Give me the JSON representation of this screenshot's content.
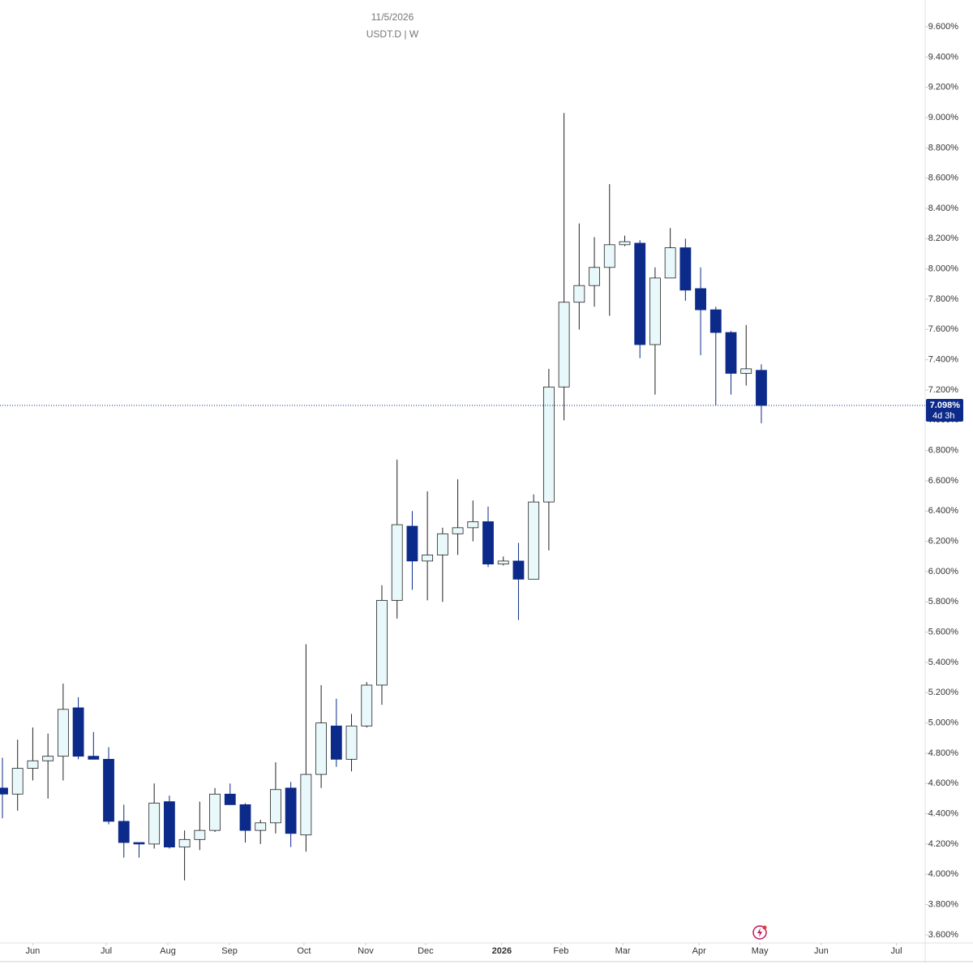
{
  "chart_data": {
    "type": "candlestick",
    "title": "11/5/2026",
    "subtitle": "USDT.D | W",
    "x": [
      0,
      1,
      2,
      3,
      4,
      5,
      6,
      7,
      8,
      9,
      10,
      11,
      12,
      13,
      14,
      15,
      16,
      17,
      18,
      19,
      20,
      21,
      22,
      23,
      24,
      25,
      26,
      27,
      28,
      29,
      30,
      31,
      32,
      33,
      34,
      35,
      36,
      37,
      38,
      39,
      40,
      41,
      42,
      43,
      44,
      45,
      46,
      47,
      48,
      49,
      50
    ],
    "open": [
      4.57,
      4.53,
      4.7,
      4.75,
      4.78,
      5.1,
      4.78,
      4.76,
      4.35,
      4.21,
      4.2,
      4.48,
      4.18,
      4.23,
      4.29,
      4.53,
      4.46,
      4.29,
      4.34,
      4.57,
      4.26,
      4.66,
      4.98,
      4.76,
      4.98,
      5.25,
      5.81,
      6.3,
      6.07,
      6.11,
      6.25,
      6.29,
      6.33,
      6.05,
      6.07,
      5.95,
      6.46,
      7.22,
      7.78,
      7.89,
      8.01,
      8.16,
      8.17,
      7.5,
      7.94,
      8.14,
      7.87,
      7.73,
      7.58,
      7.31,
      7.33
    ],
    "high": [
      4.77,
      4.89,
      4.97,
      4.93,
      5.26,
      5.17,
      4.94,
      4.84,
      4.46,
      4.21,
      4.6,
      4.52,
      4.29,
      4.48,
      4.57,
      4.6,
      4.47,
      4.36,
      4.74,
      4.61,
      5.52,
      5.25,
      5.16,
      5.06,
      5.27,
      5.91,
      6.74,
      6.4,
      6.53,
      6.29,
      6.61,
      6.47,
      6.43,
      6.1,
      6.19,
      6.51,
      7.34,
      9.03,
      8.3,
      8.21,
      8.56,
      8.22,
      8.19,
      8.01,
      8.27,
      8.2,
      8.01,
      7.75,
      7.59,
      7.63,
      7.37
    ],
    "low": [
      4.37,
      4.42,
      4.62,
      4.5,
      4.62,
      4.76,
      4.76,
      4.33,
      4.11,
      4.11,
      4.17,
      4.17,
      3.96,
      4.16,
      4.28,
      4.46,
      4.21,
      4.2,
      4.27,
      4.18,
      4.15,
      4.57,
      4.71,
      4.68,
      4.97,
      5.12,
      5.69,
      5.88,
      5.81,
      5.8,
      6.11,
      6.2,
      6.03,
      6.04,
      5.68,
      5.95,
      6.14,
      7.0,
      7.6,
      7.75,
      7.69,
      8.15,
      7.41,
      7.17,
      7.94,
      7.79,
      7.43,
      7.1,
      7.17,
      7.23,
      6.98
    ],
    "close": [
      4.53,
      4.7,
      4.75,
      4.78,
      5.09,
      4.78,
      4.76,
      4.35,
      4.21,
      4.2,
      4.47,
      4.18,
      4.23,
      4.29,
      4.53,
      4.46,
      4.29,
      4.34,
      4.56,
      4.27,
      4.66,
      5.0,
      4.76,
      4.98,
      5.25,
      5.81,
      6.31,
      6.07,
      6.11,
      6.25,
      6.29,
      6.33,
      6.05,
      6.07,
      5.95,
      6.46,
      7.22,
      7.78,
      7.89,
      8.01,
      8.16,
      8.18,
      7.5,
      7.94,
      8.14,
      7.86,
      7.73,
      7.58,
      7.31,
      7.34,
      7.098
    ],
    "up_color": "#e9f8fb",
    "down_color": "#0c2a8a",
    "border_color": "#222222",
    "last_price": {
      "value": 7.098,
      "label": "7.098%"
    },
    "countdown": "4d 3h",
    "xlim": [
      -0.16,
      60.74
    ],
    "xticks": [
      {
        "value": 2,
        "label": "Jun"
      },
      {
        "value": 6.84,
        "label": "Jul"
      },
      {
        "value": 10.9,
        "label": "Aug"
      },
      {
        "value": 14.96,
        "label": "Sep"
      },
      {
        "value": 19.87,
        "label": "Oct"
      },
      {
        "value": 23.93,
        "label": "Nov"
      },
      {
        "value": 27.88,
        "label": "Dec"
      },
      {
        "value": 32.9,
        "label": "2026"
      },
      {
        "value": 36.8,
        "label": "Feb"
      },
      {
        "value": 40.87,
        "label": "Mar"
      },
      {
        "value": 45.9,
        "label": "Apr"
      },
      {
        "value": 49.9,
        "label": "May"
      },
      {
        "value": 53.95,
        "label": "Jun"
      },
      {
        "value": 58.9,
        "label": "Jul"
      }
    ],
    "ylim": [
      3.546,
      9.777
    ],
    "yticks": [
      {
        "value": 3.6,
        "label": "3.600%"
      },
      {
        "value": 3.8,
        "label": "3.800%"
      },
      {
        "value": 4.0,
        "label": "4.000%"
      },
      {
        "value": 4.2,
        "label": "4.200%"
      },
      {
        "value": 4.4,
        "label": "4.400%"
      },
      {
        "value": 4.6,
        "label": "4.600%"
      },
      {
        "value": 4.8,
        "label": "4.800%"
      },
      {
        "value": 5.0,
        "label": "5.000%"
      },
      {
        "value": 5.2,
        "label": "5.200%"
      },
      {
        "value": 5.4,
        "label": "5.400%"
      },
      {
        "value": 5.6,
        "label": "5.600%"
      },
      {
        "value": 5.8,
        "label": "5.800%"
      },
      {
        "value": 6.0,
        "label": "6.000%"
      },
      {
        "value": 6.2,
        "label": "6.200%"
      },
      {
        "value": 6.4,
        "label": "6.400%"
      },
      {
        "value": 6.6,
        "label": "6.600%"
      },
      {
        "value": 6.8,
        "label": "6.800%"
      },
      {
        "value": 7.0,
        "label": "7.000%"
      },
      {
        "value": 7.2,
        "label": "7.200%"
      },
      {
        "value": 7.4,
        "label": "7.400%"
      },
      {
        "value": 7.6,
        "label": "7.600%"
      },
      {
        "value": 7.8,
        "label": "7.800%"
      },
      {
        "value": 8.0,
        "label": "8.000%"
      },
      {
        "value": 8.2,
        "label": "8.200%"
      },
      {
        "value": 8.4,
        "label": "8.400%"
      },
      {
        "value": 8.6,
        "label": "8.600%"
      },
      {
        "value": 8.8,
        "label": "8.800%"
      },
      {
        "value": 9.0,
        "label": "9.000%"
      },
      {
        "value": 9.2,
        "label": "9.200%"
      },
      {
        "value": 9.4,
        "label": "9.400%"
      },
      {
        "value": 9.6,
        "label": "9.600%"
      }
    ]
  }
}
